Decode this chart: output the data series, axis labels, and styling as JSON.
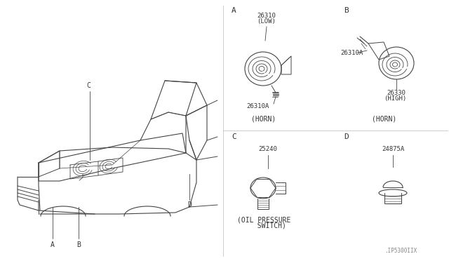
{
  "bg_color": "#ffffff",
  "line_color": "#444444",
  "text_color": "#333333",
  "label_color": "#555555",
  "parts": {
    "A_label": "A",
    "A_part_num1": "26310",
    "A_part_num1b": "(LOW)",
    "A_sub_part": "26310A",
    "A_caption": "(HORN)",
    "B_label": "B",
    "B_part_num1": "26310A",
    "B_part_num2": "26330",
    "B_part_num2b": "(HIGH)",
    "B_caption": "(HORN)",
    "C_label": "C",
    "C_part_num": "25240",
    "C_caption1": "(OIL PRESSURE",
    "C_caption2": "  SWITCH)",
    "D_label": "D",
    "D_part_num": "24875A",
    "watermark": ".IP5300IIX"
  }
}
